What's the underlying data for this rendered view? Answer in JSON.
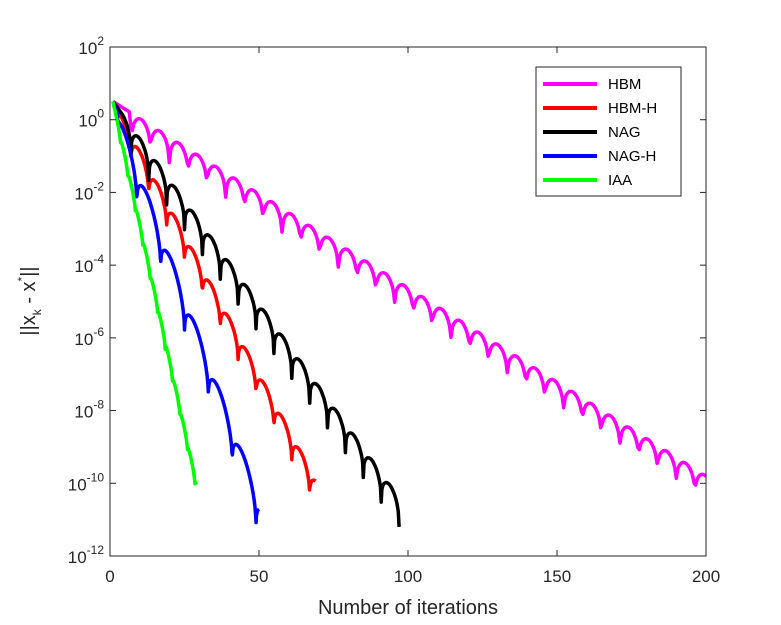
{
  "chart_data": {
    "type": "line",
    "x_scale": "linear",
    "y_scale": "log",
    "xlabel": "Number of iterations",
    "ylabel_parts": {
      "main": "||x",
      "sub": "k",
      "mid": " - x",
      "sup": "*",
      "end": "||"
    },
    "xlim": [
      0,
      200
    ],
    "ylim_exp": [
      -12,
      2
    ],
    "x_ticks": [
      "0",
      "50",
      "100",
      "150",
      "200"
    ],
    "y_ticks": [
      {
        "exp": -12,
        "base": "10",
        "sup": "-12"
      },
      {
        "exp": -10,
        "base": "10",
        "sup": "-10"
      },
      {
        "exp": -8,
        "base": "10",
        "sup": "-8"
      },
      {
        "exp": -6,
        "base": "10",
        "sup": "-6"
      },
      {
        "exp": -4,
        "base": "10",
        "sup": "-4"
      },
      {
        "exp": -2,
        "base": "10",
        "sup": "-2"
      },
      {
        "exp": 0,
        "base": "10",
        "sup": "0"
      },
      {
        "exp": 2,
        "base": "10",
        "sup": "2"
      }
    ],
    "legend_position": "top-right",
    "series": [
      {
        "name": "HBM",
        "color": "#ff00ff",
        "start_exp": 0.5,
        "end_x": 200,
        "end_exp": -9.8,
        "period": 6.3,
        "amp": 0.8
      },
      {
        "name": "HBM-H",
        "color": "#ff0000",
        "start_exp": 0.5,
        "end_x": 69,
        "end_exp": -9.9,
        "period": 6.0,
        "amp": 0.8
      },
      {
        "name": "NAG",
        "color": "#000000",
        "start_exp": 0.5,
        "end_x": 97,
        "end_exp": -10.4,
        "period": 6.0,
        "amp": 0.8
      },
      {
        "name": "NAG-H",
        "color": "#0000ff",
        "start_exp": 0.5,
        "end_x": 50,
        "end_exp": -10.4,
        "period": 8.0,
        "amp": 1.1
      },
      {
        "name": "IAA",
        "color": "#00ff00",
        "start_exp": 0.5,
        "end_x": 29,
        "end_exp": -10.0,
        "period": 2.5,
        "amp": 0.25
      }
    ]
  }
}
